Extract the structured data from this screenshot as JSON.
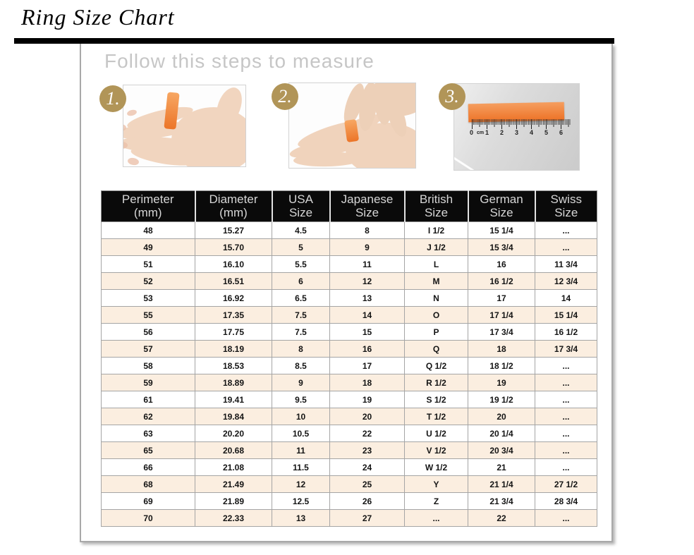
{
  "page": {
    "title": "Ring Size Chart"
  },
  "steps": {
    "heading": "Follow this steps to measure",
    "badges": [
      "1.",
      "2.",
      "3."
    ]
  },
  "ruler": {
    "labels": [
      "0",
      "cm",
      "1",
      "2",
      "3",
      "4",
      "5",
      "6"
    ]
  },
  "chart_data": {
    "type": "table",
    "title": "Ring Size Chart",
    "columns": [
      [
        "Perimeter",
        "(mm)"
      ],
      [
        "Diameter",
        "(mm)"
      ],
      [
        "USA",
        "Size"
      ],
      [
        "Japanese",
        "Size"
      ],
      [
        "British",
        "Size"
      ],
      [
        "German",
        "Size"
      ],
      [
        "Swiss",
        "Size"
      ]
    ],
    "rows": [
      [
        "48",
        "15.27",
        "4.5",
        "8",
        "I 1/2",
        "15 1/4",
        "..."
      ],
      [
        "49",
        "15.70",
        "5",
        "9",
        "J 1/2",
        "15 3/4",
        "..."
      ],
      [
        "51",
        "16.10",
        "5.5",
        "11",
        "L",
        "16",
        "11 3/4"
      ],
      [
        "52",
        "16.51",
        "6",
        "12",
        "M",
        "16 1/2",
        "12 3/4"
      ],
      [
        "53",
        "16.92",
        "6.5",
        "13",
        "N",
        "17",
        "14"
      ],
      [
        "55",
        "17.35",
        "7.5",
        "14",
        "O",
        "17 1/4",
        "15 1/4"
      ],
      [
        "56",
        "17.75",
        "7.5",
        "15",
        "P",
        "17 3/4",
        "16 1/2"
      ],
      [
        "57",
        "18.19",
        "8",
        "16",
        "Q",
        "18",
        "17 3/4"
      ],
      [
        "58",
        "18.53",
        "8.5",
        "17",
        "Q 1/2",
        "18 1/2",
        "..."
      ],
      [
        "59",
        "18.89",
        "9",
        "18",
        "R 1/2",
        "19",
        "..."
      ],
      [
        "61",
        "19.41",
        "9.5",
        "19",
        "S 1/2",
        "19 1/2",
        "..."
      ],
      [
        "62",
        "19.84",
        "10",
        "20",
        "T 1/2",
        "20",
        "..."
      ],
      [
        "63",
        "20.20",
        "10.5",
        "22",
        "U 1/2",
        "20 1/4",
        "..."
      ],
      [
        "65",
        "20.68",
        "11",
        "23",
        "V 1/2",
        "20 3/4",
        "..."
      ],
      [
        "66",
        "21.08",
        "11.5",
        "24",
        "W 1/2",
        "21",
        "..."
      ],
      [
        "68",
        "21.49",
        "12",
        "25",
        "Y",
        "21 1/4",
        "27 1/2"
      ],
      [
        "69",
        "21.89",
        "12.5",
        "26",
        "Z",
        "21 3/4",
        "28 3/4"
      ],
      [
        "70",
        "22.33",
        "13",
        "27",
        "...",
        "22",
        "..."
      ]
    ]
  },
  "colors": {
    "accent_gold": "#b19558",
    "row_alt": "#fbeee0",
    "table_header_bg": "#0a0a0a",
    "table_header_text": "#d6d6d6",
    "bar_black": "#000000",
    "heading_gray": "#c6c6c6",
    "strip_orange": "#ed7226",
    "strip_orange_light": "#f59e5f",
    "border_gray": "#a5a5a5"
  }
}
